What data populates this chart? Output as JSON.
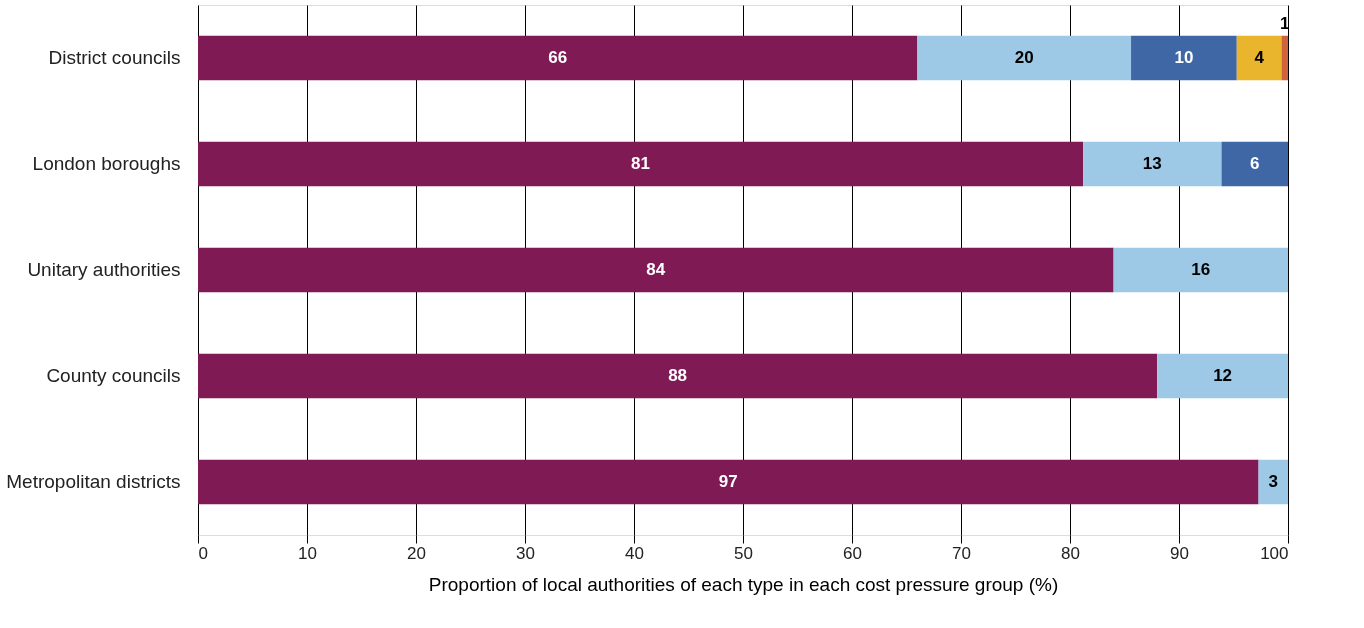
{
  "chart_data": {
    "type": "bar",
    "orientation": "horizontal",
    "stacked": true,
    "categories": [
      "District councils",
      "London boroughs",
      "Unitary authorities",
      "County councils",
      "Metropolitan districts"
    ],
    "series": [
      {
        "color": "#7f1a55",
        "values": [
          66,
          81.2,
          84,
          88,
          97.3
        ],
        "value_labels": [
          "66",
          "81",
          "84",
          "88",
          "97"
        ]
      },
      {
        "color": "#9dc9e6",
        "values": [
          19.6,
          12.7,
          16,
          12,
          2.7
        ],
        "value_labels": [
          "20",
          "13",
          "16",
          "12",
          "3"
        ]
      },
      {
        "color": "#3f67a6",
        "values": [
          9.7,
          6.1,
          null,
          null,
          null
        ],
        "value_labels": [
          "10",
          "6",
          null,
          null,
          null
        ]
      },
      {
        "color": "#e8b52c",
        "values": [
          4.1,
          null,
          null,
          null,
          null
        ],
        "value_labels": [
          "4",
          null,
          null,
          null,
          null
        ]
      },
      {
        "color": "#d0633b",
        "values": [
          0.6,
          null,
          null,
          null,
          null
        ],
        "value_labels": [
          "1",
          null,
          null,
          null,
          null
        ]
      }
    ],
    "xlim": [
      0,
      100
    ],
    "xticks": [
      0,
      10,
      20,
      30,
      40,
      50,
      60,
      70,
      80,
      90,
      100
    ],
    "xlabel": "Proportion of local authorities of each type in each cost pressure group (%)",
    "grid": "x",
    "legend": false
  }
}
